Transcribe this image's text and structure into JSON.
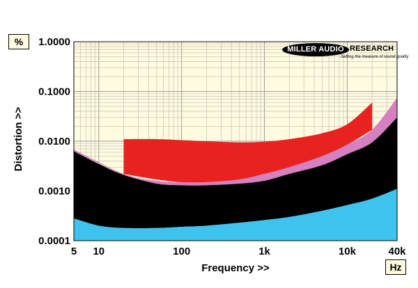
{
  "chart_data": {
    "type": "area",
    "xlabel": "Frequency >>",
    "ylabel": "Distortion >>",
    "x_unit": "Hz",
    "y_unit": "%",
    "x_scale": "log",
    "y_scale": "log",
    "xlim": [
      5,
      40000
    ],
    "ylim": [
      0.0001,
      1.0
    ],
    "x_ticks": [
      {
        "value": 5,
        "label": "5"
      },
      {
        "value": 10,
        "label": "10"
      },
      {
        "value": 100,
        "label": "100"
      },
      {
        "value": 1000,
        "label": "1k"
      },
      {
        "value": 10000,
        "label": "10k"
      },
      {
        "value": 40000,
        "label": "40k"
      }
    ],
    "y_ticks": [
      {
        "value": 1.0,
        "label": "1.0000"
      },
      {
        "value": 0.1,
        "label": "0.1000"
      },
      {
        "value": 0.01,
        "label": "0.0100"
      },
      {
        "value": 0.001,
        "label": "0.0010"
      },
      {
        "value": 0.0001,
        "label": "0.0001"
      }
    ],
    "grid": true,
    "background": "#fffbe0",
    "series": [
      {
        "color": "#e8231f",
        "x": [
          20,
          50,
          100,
          200,
          500,
          1000,
          2000,
          5000,
          10000,
          20000
        ],
        "y": [
          0.011,
          0.011,
          0.0105,
          0.01,
          0.0095,
          0.0098,
          0.011,
          0.0145,
          0.022,
          0.06
        ],
        "lower": [
          0.0022,
          0.0017,
          0.0015,
          0.0015,
          0.0017,
          0.0022,
          0.003,
          0.005,
          0.0085,
          0.017
        ]
      },
      {
        "color": "#d67fc2",
        "x": [
          5,
          20,
          50,
          100,
          200,
          500,
          1000,
          2000,
          5000,
          10000,
          20000,
          40000
        ],
        "y": [
          0.0068,
          0.0022,
          0.0016,
          0.0015,
          0.0015,
          0.0017,
          0.0022,
          0.003,
          0.005,
          0.0085,
          0.017,
          0.075
        ],
        "lower": [
          0.0063,
          0.0021,
          0.0014,
          0.0013,
          0.0013,
          0.0014,
          0.0016,
          0.0022,
          0.0033,
          0.0055,
          0.0095,
          0.03
        ]
      },
      {
        "color": "#000000",
        "x": [
          5,
          10,
          20,
          50,
          100,
          200,
          500,
          1000,
          2000,
          5000,
          10000,
          20000,
          40000
        ],
        "y": [
          0.0063,
          0.0035,
          0.0021,
          0.0014,
          0.0013,
          0.0013,
          0.0014,
          0.0016,
          0.0022,
          0.0033,
          0.0055,
          0.0095,
          0.03
        ],
        "lower": [
          0.00028,
          0.0002,
          0.00018,
          0.00018,
          0.00019,
          0.0002,
          0.00023,
          0.00026,
          0.0003,
          0.0004,
          0.00052,
          0.0007,
          0.0011
        ]
      },
      {
        "color": "#3ec3ef",
        "x": [
          5,
          10,
          20,
          50,
          100,
          200,
          500,
          1000,
          2000,
          5000,
          10000,
          20000,
          40000
        ],
        "y": [
          0.00028,
          0.0002,
          0.00018,
          0.00018,
          0.00019,
          0.0002,
          0.00023,
          0.00026,
          0.0003,
          0.0004,
          0.00052,
          0.0007,
          0.0011
        ],
        "lower": [
          0.0001,
          0.0001,
          0.0001,
          0.0001,
          0.0001,
          0.0001,
          0.0001,
          0.0001,
          0.0001,
          0.0001,
          0.0001,
          0.0001,
          0.0001
        ]
      }
    ]
  },
  "logo": {
    "part1": "MILLER AUDIO",
    "part2": "RESEARCH",
    "tagline": "Setting the measure of sound quality"
  }
}
